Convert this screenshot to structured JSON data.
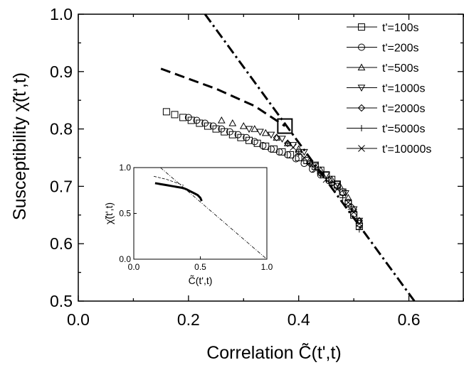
{
  "chart_data": {
    "type": "scatter",
    "xlabel": "Correlation C̃(t',t)",
    "ylabel": "Susceptibility χ̃(t',t)",
    "xlim": [
      0.0,
      0.7
    ],
    "ylim": [
      0.5,
      1.0
    ],
    "x_ticks": [
      "0.0",
      "0.2",
      "0.4",
      "0.6"
    ],
    "y_ticks": [
      "0.5",
      "0.6",
      "0.7",
      "0.8",
      "0.9",
      "1.0"
    ],
    "grid": false,
    "legend_position": "top-right",
    "series": [
      {
        "name": "t'=100s",
        "marker": "square",
        "x": [
          0.16,
          0.175,
          0.19,
          0.205,
          0.22,
          0.235,
          0.25,
          0.265,
          0.28,
          0.295,
          0.31,
          0.325,
          0.34,
          0.355,
          0.37,
          0.385,
          0.4,
          0.415,
          0.43,
          0.44,
          0.45,
          0.46,
          0.47,
          0.48,
          0.49,
          0.5,
          0.51
        ],
        "y": [
          0.83,
          0.825,
          0.82,
          0.815,
          0.81,
          0.805,
          0.8,
          0.795,
          0.79,
          0.785,
          0.78,
          0.775,
          0.77,
          0.765,
          0.76,
          0.755,
          0.75,
          0.745,
          0.735,
          0.728,
          0.72,
          0.712,
          0.703,
          0.69,
          0.67,
          0.65,
          0.63
        ]
      },
      {
        "name": "t'=200s",
        "marker": "circle",
        "x": [
          0.2,
          0.215,
          0.23,
          0.245,
          0.26,
          0.275,
          0.29,
          0.305,
          0.32,
          0.335,
          0.35,
          0.365,
          0.38,
          0.395,
          0.41,
          0.425,
          0.44,
          0.455,
          0.47,
          0.48,
          0.49,
          0.5,
          0.51
        ],
        "y": [
          0.82,
          0.815,
          0.81,
          0.805,
          0.8,
          0.795,
          0.79,
          0.785,
          0.778,
          0.771,
          0.765,
          0.76,
          0.755,
          0.748,
          0.74,
          0.73,
          0.72,
          0.71,
          0.7,
          0.69,
          0.672,
          0.652,
          0.635
        ]
      },
      {
        "name": "t'=500s",
        "marker": "triangle-up",
        "x": [
          0.26,
          0.28,
          0.3,
          0.32,
          0.34,
          0.36,
          0.38,
          0.4,
          0.42,
          0.44,
          0.46,
          0.475,
          0.49,
          0.5,
          0.51
        ],
        "y": [
          0.815,
          0.81,
          0.805,
          0.8,
          0.793,
          0.785,
          0.775,
          0.765,
          0.745,
          0.728,
          0.712,
          0.7,
          0.68,
          0.66,
          0.64
        ]
      },
      {
        "name": "t'=1000s",
        "marker": "triangle-down",
        "x": [
          0.31,
          0.33,
          0.35,
          0.37,
          0.39,
          0.41,
          0.43,
          0.45,
          0.47,
          0.485,
          0.5,
          0.51
        ],
        "y": [
          0.8,
          0.795,
          0.79,
          0.783,
          0.772,
          0.76,
          0.738,
          0.72,
          0.705,
          0.688,
          0.66,
          0.64
        ]
      },
      {
        "name": "t'=2000s",
        "marker": "diamond",
        "x": [
          0.36,
          0.38,
          0.4,
          0.42,
          0.44,
          0.46,
          0.48,
          0.495,
          0.51
        ],
        "y": [
          0.785,
          0.775,
          0.76,
          0.74,
          0.722,
          0.705,
          0.688,
          0.665,
          0.64
        ]
      },
      {
        "name": "t'=5000s",
        "marker": "plus",
        "x": [
          0.38,
          0.4,
          0.42,
          0.44,
          0.46,
          0.48,
          0.495,
          0.51
        ],
        "y": [
          0.775,
          0.758,
          0.738,
          0.72,
          0.702,
          0.68,
          0.66,
          0.625
        ]
      },
      {
        "name": "t'=10000s",
        "marker": "cross",
        "x": [
          0.39,
          0.41,
          0.43,
          0.45,
          0.47,
          0.49,
          0.5,
          0.51
        ],
        "y": [
          0.768,
          0.75,
          0.73,
          0.712,
          0.695,
          0.672,
          0.655,
          0.635
        ]
      }
    ],
    "reference_lines": [
      {
        "style": "dash-dot",
        "x": [
          0.23,
          0.61
        ],
        "y": [
          1.0,
          0.5
        ]
      },
      {
        "style": "dashed",
        "x": [
          0.15,
          0.25,
          0.32,
          0.375
        ],
        "y": [
          0.905,
          0.87,
          0.84,
          0.805
        ]
      }
    ],
    "highlight_square": {
      "x": 0.375,
      "y": 0.805
    },
    "inset": {
      "xlabel": "C̃(t',t)",
      "ylabel": "χ̃(t',t)",
      "xlim": [
        0.0,
        1.0
      ],
      "ylim": [
        0.0,
        1.0
      ],
      "x_ticks": [
        "0.0",
        "0.5",
        "1.0"
      ],
      "y_ticks": [
        "0.0",
        "0.5",
        "1.0"
      ],
      "data": {
        "x": [
          0.16,
          0.18,
          0.2,
          0.22,
          0.24,
          0.26,
          0.28,
          0.3,
          0.32,
          0.34,
          0.36,
          0.38,
          0.4,
          0.42,
          0.44,
          0.46,
          0.48,
          0.5,
          0.51
        ],
        "y": [
          0.83,
          0.825,
          0.82,
          0.815,
          0.81,
          0.805,
          0.8,
          0.795,
          0.79,
          0.785,
          0.78,
          0.772,
          0.76,
          0.745,
          0.73,
          0.715,
          0.7,
          0.67,
          0.635
        ]
      },
      "reference_lines": [
        {
          "style": "dash-dot",
          "x": [
            0.2,
            1.0
          ],
          "y": [
            1.0,
            0.0
          ]
        },
        {
          "style": "dashed",
          "x": [
            0.15,
            0.25,
            0.375
          ],
          "y": [
            0.905,
            0.87,
            0.805
          ]
        }
      ]
    }
  }
}
